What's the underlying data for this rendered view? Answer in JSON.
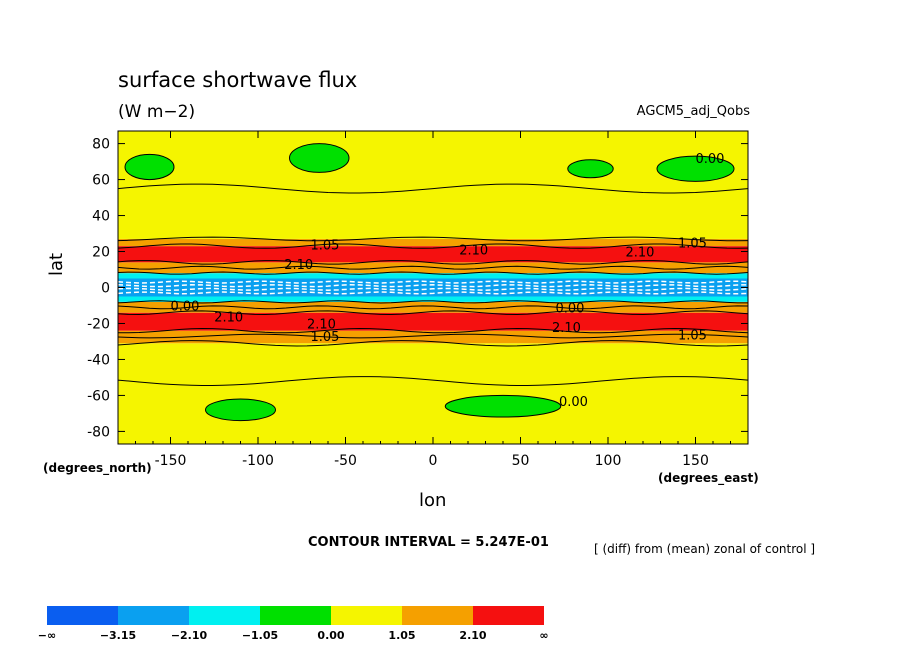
{
  "chart_data": {
    "type": "contour",
    "title": "surface shortwave flux",
    "units": "(W m−2)",
    "dataset": "AGCM5_adj_Qobs",
    "xlabel": "lon",
    "ylabel": "lat",
    "x_corner_label": "(degrees_east)",
    "y_corner_label": "(degrees_north)",
    "xlim": [
      -180,
      180
    ],
    "ylim": [
      -87,
      87
    ],
    "x_ticks": [
      -150,
      -100,
      -50,
      0,
      50,
      100,
      150
    ],
    "y_ticks": [
      80,
      60,
      40,
      20,
      0,
      -20,
      -40,
      -60,
      -80
    ],
    "contour_interval_text": "CONTOUR INTERVAL = 5.247E-01",
    "note": "[ (diff) from (mean) zonal of control ]",
    "colorbar": {
      "levels": [
        "−∞",
        "−3.15",
        "−2.10",
        "−1.05",
        "0.00",
        "1.05",
        "2.10",
        "∞"
      ],
      "colors": [
        "#0a5ef0",
        "#0aa0f0",
        "#00f0f0",
        "#00e000",
        "#f5f500",
        "#f5a000",
        "#f51010"
      ]
    },
    "zonal_bands": [
      {
        "lat_from": -87,
        "lat_to": -31,
        "value_class": "0.00 to 1.05"
      },
      {
        "lat_from": -31,
        "lat_to": -24,
        "value_class": "1.05 to 2.10"
      },
      {
        "lat_from": -24,
        "lat_to": -14,
        "value_class": "above 2.10"
      },
      {
        "lat_from": -14,
        "lat_to": -8,
        "value_class": "1.05 to 2.10"
      },
      {
        "lat_from": -8,
        "lat_to": -5,
        "value_class": "-2.10 to -1.05"
      },
      {
        "lat_from": -5,
        "lat_to": 5,
        "value_class": "-3.15 to -2.10"
      },
      {
        "lat_from": 5,
        "lat_to": 8,
        "value_class": "-2.10 to -1.05"
      },
      {
        "lat_from": 8,
        "lat_to": 14,
        "value_class": "1.05 to 2.10"
      },
      {
        "lat_from": 14,
        "lat_to": 23,
        "value_class": "above 2.10"
      },
      {
        "lat_from": 23,
        "lat_to": 27,
        "value_class": "1.05 to 2.10"
      },
      {
        "lat_from": 27,
        "lat_to": 87,
        "value_class": "0.00 to 1.05"
      }
    ],
    "contour_labels": [
      {
        "text": "0.00",
        "lon": 150,
        "lat": 72
      },
      {
        "text": "1.05",
        "lon": -70,
        "lat": 24
      },
      {
        "text": "2.10",
        "lon": 15,
        "lat": 21
      },
      {
        "text": "2.10",
        "lon": 110,
        "lat": 20
      },
      {
        "text": "1.05",
        "lon": 140,
        "lat": 25
      },
      {
        "text": "2.10",
        "lon": -85,
        "lat": 13
      },
      {
        "text": "2.10",
        "lon": -125,
        "lat": -16
      },
      {
        "text": "0.00",
        "lon": -150,
        "lat": -10
      },
      {
        "text": "0.00",
        "lon": 70,
        "lat": -11
      },
      {
        "text": "2.10",
        "lon": 68,
        "lat": -22
      },
      {
        "text": "2.10",
        "lon": -72,
        "lat": -20
      },
      {
        "text": "1.05",
        "lon": -70,
        "lat": -27
      },
      {
        "text": "1.05",
        "lon": 140,
        "lat": -26
      },
      {
        "text": "0.00",
        "lon": 72,
        "lat": -63
      }
    ],
    "negative_patches": [
      {
        "lon": -162,
        "lat": 67
      },
      {
        "lon": -65,
        "lat": 72
      },
      {
        "lon": 90,
        "lat": 66
      },
      {
        "lon": 150,
        "lat": 66
      },
      {
        "lon": -110,
        "lat": -68
      },
      {
        "lon": 40,
        "lat": -66
      }
    ]
  }
}
